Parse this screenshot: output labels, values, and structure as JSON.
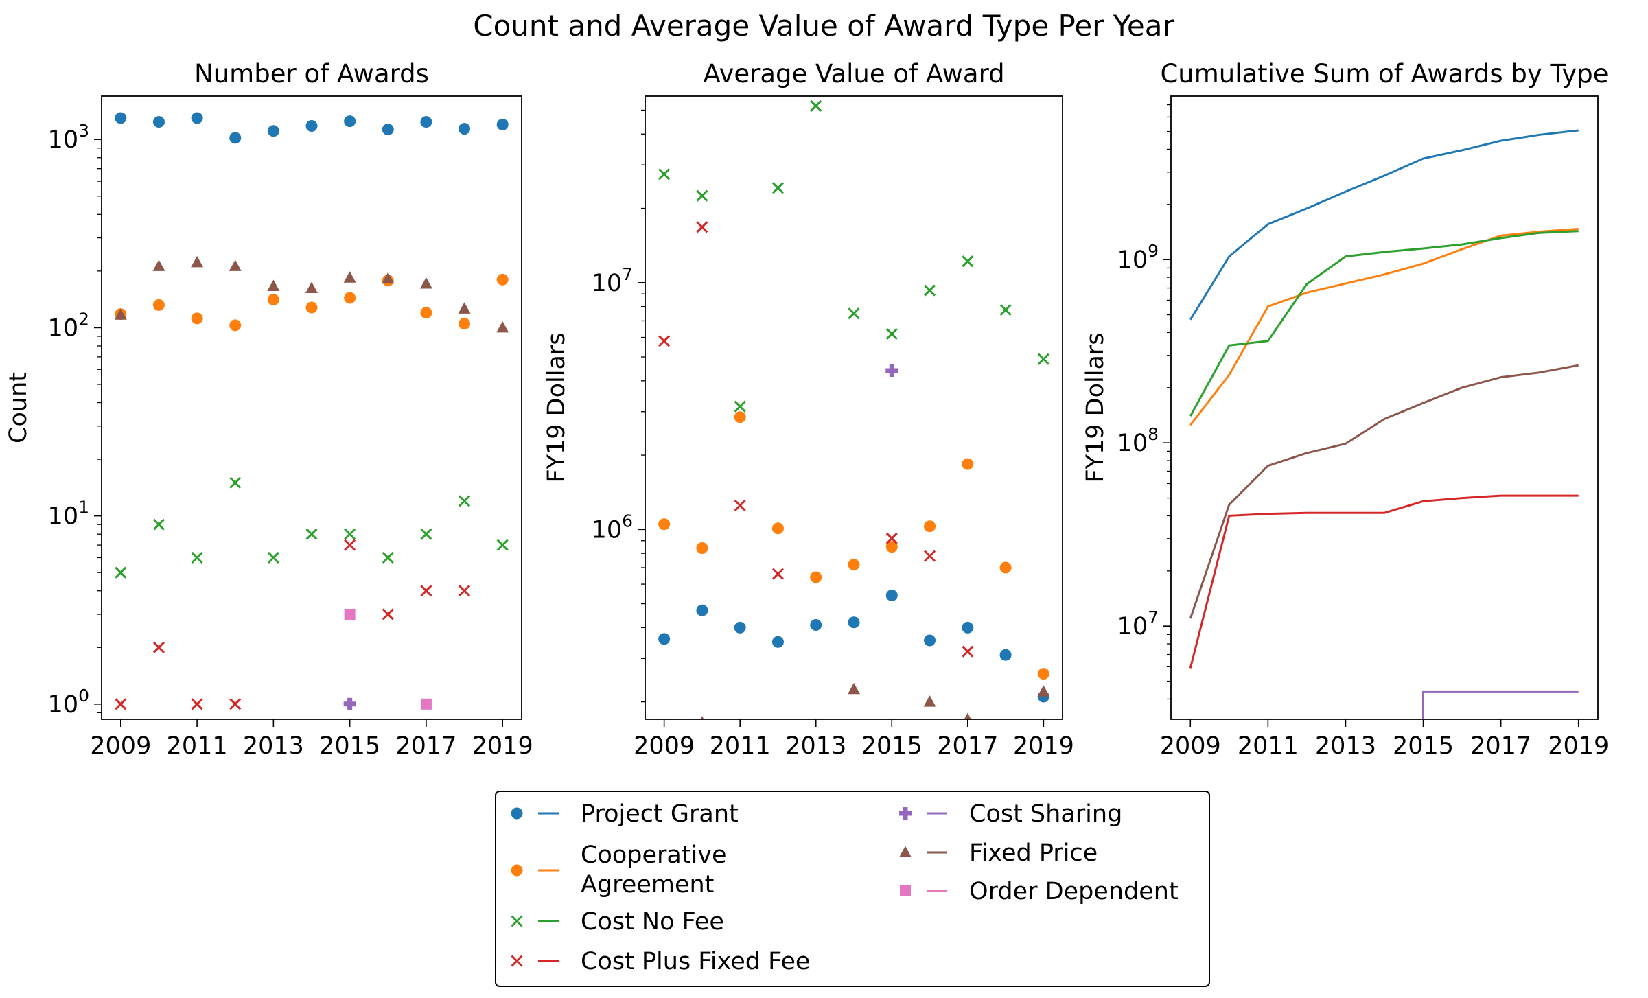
{
  "chart_data": {
    "type": "scatter",
    "title": "Count and Average Value of Award Type Per Year",
    "years": [
      2009,
      2010,
      2011,
      2012,
      2013,
      2014,
      2015,
      2016,
      2017,
      2018,
      2019
    ],
    "series": [
      {
        "name": "Project Grant",
        "color": "#1f77b4",
        "marker": "circle"
      },
      {
        "name": "Cooperative\nAgreement",
        "color": "#ff7f0e",
        "marker": "circle"
      },
      {
        "name": "Cost No Fee",
        "color": "#2ca02c",
        "marker": "x"
      },
      {
        "name": "Cost Plus Fixed Fee",
        "color": "#d62728",
        "marker": "x"
      },
      {
        "name": "Cost Sharing",
        "color": "#9467bd",
        "marker": "plus"
      },
      {
        "name": "Fixed Price",
        "color": "#8c564b",
        "marker": "triangle"
      },
      {
        "name": "Order Dependent",
        "color": "#e377c2",
        "marker": "square"
      }
    ],
    "panels": [
      {
        "title": "Number of Awards",
        "ylabel": "Count",
        "yscale": "log",
        "ylim": [
          0.83,
          1700
        ],
        "yticks": [
          1,
          10,
          100,
          1000
        ],
        "ytick_labels": [
          "10^0",
          "10^1",
          "10^2",
          "10^3"
        ],
        "xticks": [
          2009,
          2011,
          2013,
          2015,
          2017,
          2019
        ],
        "kind": "scatter",
        "data": [
          [
            1300,
            1240,
            1300,
            1020,
            1110,
            1180,
            1250,
            1130,
            1240,
            1140,
            1200
          ],
          [
            118,
            132,
            112,
            103,
            141,
            128,
            144,
            178,
            120,
            105,
            180
          ],
          [
            5,
            9,
            6,
            15,
            6,
            8,
            8,
            6,
            8,
            12,
            7
          ],
          [
            1,
            2,
            1,
            1,
            null,
            null,
            7,
            3,
            4,
            4,
            null
          ],
          [
            null,
            null,
            null,
            null,
            null,
            null,
            1,
            null,
            null,
            null,
            null
          ],
          [
            117,
            212,
            222,
            212,
            166,
            162,
            184,
            182,
            171,
            126,
            100
          ],
          [
            null,
            null,
            null,
            null,
            null,
            null,
            3,
            null,
            1,
            null,
            null
          ]
        ]
      },
      {
        "title": "Average Value of Award",
        "ylabel": "FY19 Dollars",
        "yscale": "log",
        "ylim": [
          170000,
          57000000
        ],
        "yticks": [
          1000000,
          10000000
        ],
        "ytick_labels": [
          "10^6",
          "10^7"
        ],
        "xticks": [
          2009,
          2011,
          2013,
          2015,
          2017,
          2019
        ],
        "kind": "scatter",
        "data": [
          [
            360000,
            470000,
            400000,
            350000,
            410000,
            420000,
            540000,
            355000,
            400000,
            310000,
            210000
          ],
          [
            1050000,
            840000,
            2850000,
            1010000,
            640000,
            720000,
            850000,
            1030000,
            1840000,
            700000,
            260000
          ],
          [
            27500000,
            22500000,
            3150000,
            24200000,
            52000000,
            7500000,
            6200000,
            9300000,
            12200000,
            7750000,
            4900000
          ],
          [
            5800000,
            16800000,
            1250000,
            660000,
            null,
            null,
            920000,
            780000,
            320000,
            null,
            null
          ],
          [
            null,
            null,
            null,
            null,
            null,
            null,
            4400000,
            null,
            null,
            null,
            null
          ],
          [
            null,
            165000,
            null,
            null,
            null,
            225000,
            null,
            200000,
            170000,
            null,
            220000
          ],
          [
            null,
            null,
            null,
            null,
            null,
            null,
            null,
            null,
            null,
            null,
            null
          ]
        ]
      },
      {
        "title": "Cumulative Sum of Awards by Type",
        "ylabel": "FY19 Dollars",
        "yscale": "log",
        "ylim": [
          3100000,
          7800000000
        ],
        "yticks": [
          10000000,
          100000000,
          1000000000
        ],
        "ytick_labels": [
          "10^7",
          "10^8",
          "10^9"
        ],
        "xticks": [
          2009,
          2011,
          2013,
          2015,
          2017,
          2019
        ],
        "kind": "line",
        "data": [
          [
            470000000,
            1040000000,
            1560000000,
            1900000000,
            2350000000,
            2870000000,
            3560000000,
            3950000000,
            4450000000,
            4800000000,
            5070000000
          ],
          [
            125000000,
            235000000,
            555000000,
            660000000,
            740000000,
            830000000,
            950000000,
            1140000000,
            1350000000,
            1420000000,
            1470000000
          ],
          [
            140000000,
            340000000,
            360000000,
            735000000,
            1040000000,
            1100000000,
            1150000000,
            1210000000,
            1310000000,
            1400000000,
            1430000000
          ],
          [
            5900000,
            40000000,
            41000000,
            41500000,
            41500000,
            41500000,
            48000000,
            50000000,
            51500000,
            51500000,
            51500000
          ],
          [
            null,
            null,
            null,
            null,
            null,
            null,
            4400000,
            4400000,
            4400000,
            4400000,
            4400000
          ],
          [
            11000000,
            46000000,
            75000000,
            88000000,
            99000000,
            135000000,
            165000000,
            200000000,
            228000000,
            242000000,
            265000000
          ],
          [
            null,
            null,
            null,
            null,
            null,
            null,
            null,
            null,
            null,
            null,
            null
          ]
        ]
      }
    ]
  }
}
